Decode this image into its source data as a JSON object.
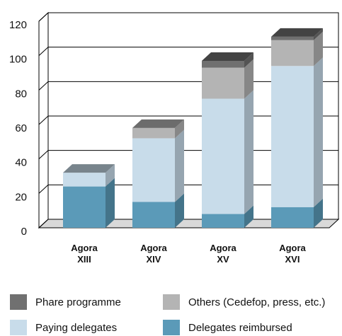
{
  "chart_data": {
    "type": "bar",
    "stacked": true,
    "categories": [
      "Agora XIII",
      "Agora XIV",
      "Agora XV",
      "Agora XVI"
    ],
    "series": [
      {
        "name": "Phare programme",
        "color": "#707070",
        "values": [
          0,
          0,
          4,
          2
        ]
      },
      {
        "name": "Others (Cedefop, press, etc.)",
        "color": "#b4b4b4",
        "values": [
          0,
          6,
          18,
          15
        ]
      },
      {
        "name": "Paying delegates",
        "color": "#c8dcea",
        "values": [
          8,
          37,
          67,
          82
        ]
      },
      {
        "name": "Delegates reimbursed",
        "color": "#5b9ab8",
        "values": [
          24,
          15,
          8,
          12
        ]
      }
    ],
    "ylim": [
      0,
      120
    ],
    "yticks": [
      0,
      20,
      40,
      60,
      80,
      100,
      120
    ],
    "grid": true
  }
}
